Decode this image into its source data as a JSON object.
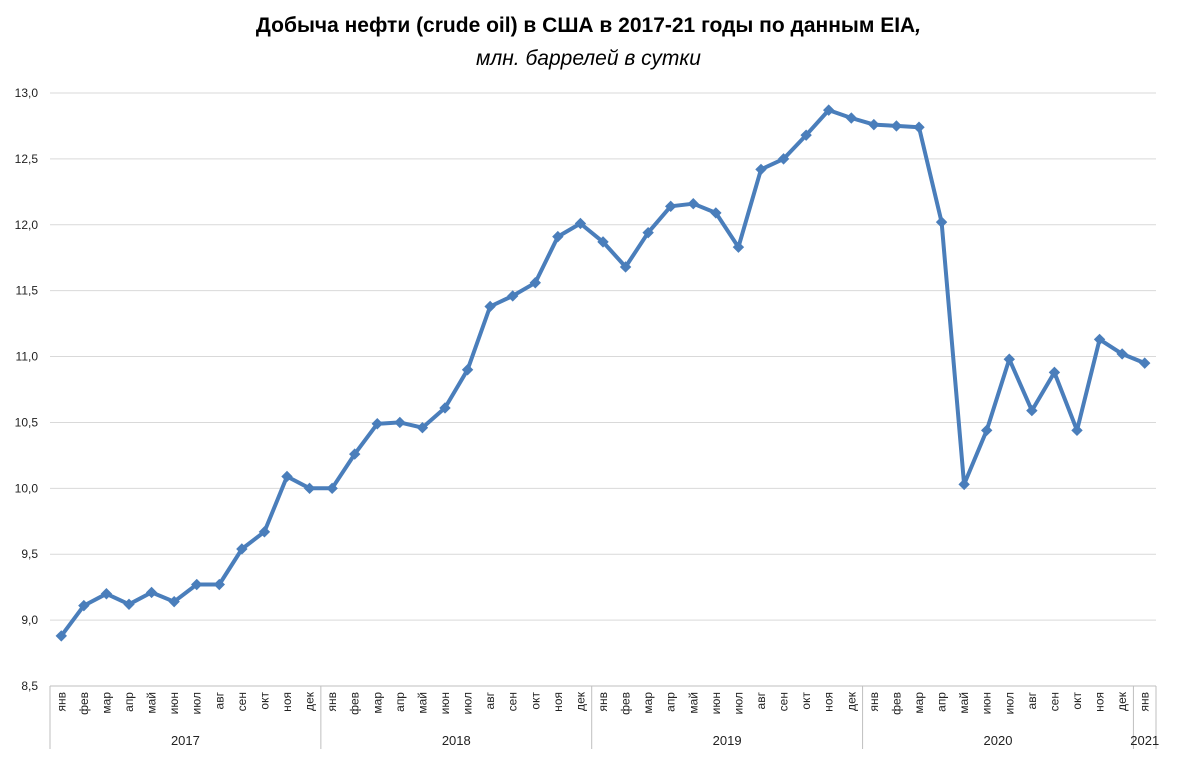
{
  "chart_data": {
    "type": "line",
    "title": "Добыча нефти (crude oil) в США в 2017-21 годы по данным EIA",
    "title_suffix": ",",
    "subtitle": "млн. баррелей в сутки",
    "ylim": [
      8.5,
      13.0
    ],
    "yticks": [
      "8,5",
      "9,0",
      "9,5",
      "10,0",
      "10,5",
      "11,0",
      "11,5",
      "12,0",
      "12,5",
      "13,0"
    ],
    "grid": true,
    "color": "#4a7ebb",
    "years": [
      {
        "label": "2017",
        "count": 12
      },
      {
        "label": "2018",
        "count": 12
      },
      {
        "label": "2019",
        "count": 12
      },
      {
        "label": "2020",
        "count": 12
      },
      {
        "label": "2021",
        "count": 1
      }
    ],
    "months": [
      "янв",
      "фев",
      "мар",
      "апр",
      "май",
      "июн",
      "июл",
      "авг",
      "сен",
      "окт",
      "ноя",
      "дек",
      "янв",
      "фев",
      "мар",
      "апр",
      "май",
      "июн",
      "июл",
      "авг",
      "сен",
      "окт",
      "ноя",
      "дек",
      "янв",
      "фев",
      "мар",
      "апр",
      "май",
      "июн",
      "июл",
      "авг",
      "сен",
      "окт",
      "ноя",
      "дек",
      "янв",
      "фев",
      "мар",
      "апр",
      "май",
      "июн",
      "июл",
      "авг",
      "сен",
      "окт",
      "ноя",
      "дек",
      "янв"
    ],
    "values": [
      8.88,
      9.11,
      9.2,
      9.12,
      9.21,
      9.14,
      9.27,
      9.27,
      9.54,
      9.67,
      10.09,
      10.0,
      10.0,
      10.26,
      10.49,
      10.5,
      10.46,
      10.61,
      10.9,
      11.38,
      11.46,
      11.56,
      11.91,
      12.01,
      11.87,
      11.68,
      11.94,
      12.14,
      12.16,
      12.09,
      11.83,
      12.42,
      12.5,
      12.68,
      12.87,
      12.81,
      12.76,
      12.75,
      12.74,
      12.02,
      10.03,
      10.44,
      10.98,
      10.59,
      10.88,
      10.44,
      11.13,
      11.02,
      10.95
    ]
  }
}
